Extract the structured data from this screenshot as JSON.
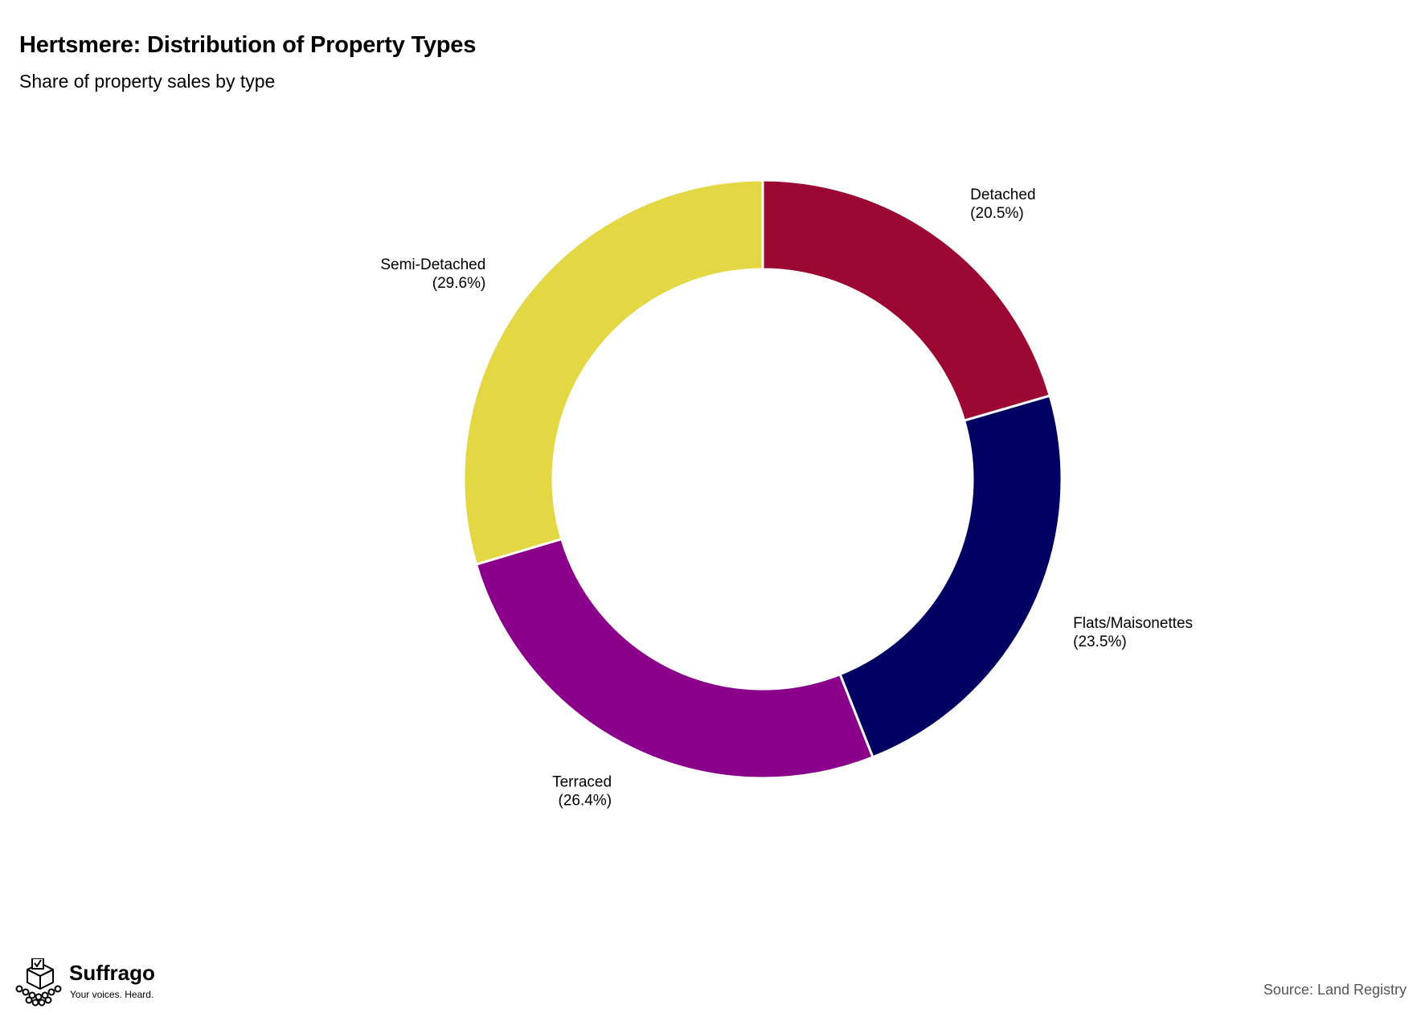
{
  "header": {
    "title": "Hertsmere: Distribution of Property Types",
    "subtitle": "Share of property sales by type"
  },
  "chart_data": {
    "type": "pie",
    "variant": "donut",
    "title": "Hertsmere: Distribution of Property Types",
    "subtitle": "Share of property sales by type",
    "unit": "%",
    "start_angle_deg": 0,
    "direction": "clockwise",
    "slices": [
      {
        "label": "Detached",
        "value": 20.5,
        "value_label": "(20.5%)",
        "color": "#9B0832"
      },
      {
        "label": "Flats/Maisonettes",
        "value": 23.5,
        "value_label": "(23.5%)",
        "color": "#000062"
      },
      {
        "label": "Terraced",
        "value": 26.4,
        "value_label": "(26.4%)",
        "color": "#8A008A"
      },
      {
        "label": "Semi-Detached",
        "value": 29.6,
        "value_label": "(29.6%)",
        "color": "#E3D744"
      }
    ]
  },
  "branding": {
    "name": "Suffrago",
    "tagline": "Your voices. Heard.",
    "icon": "ballot-box-crowd-icon"
  },
  "footer": {
    "source": "Source: Land Registry"
  }
}
